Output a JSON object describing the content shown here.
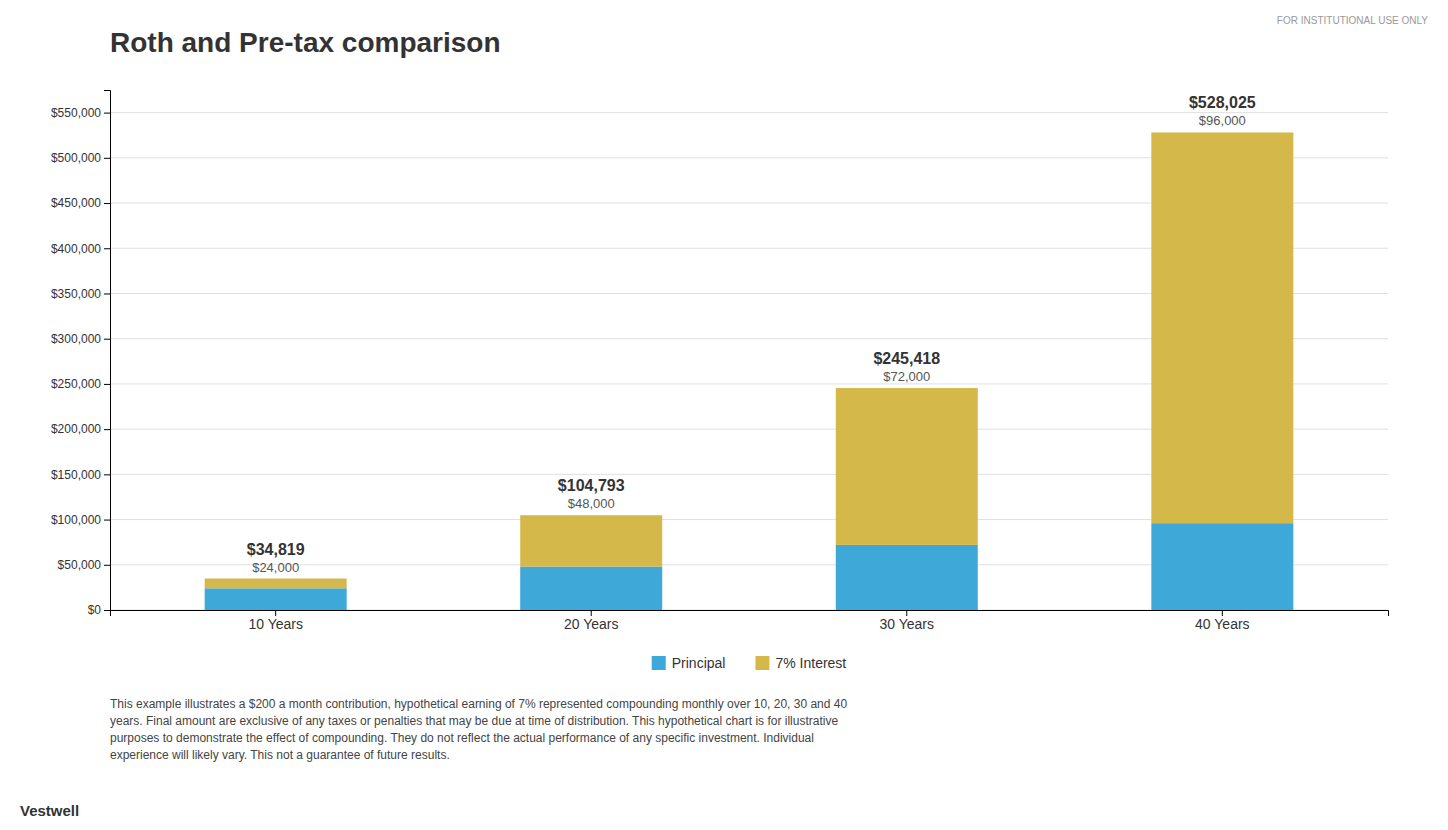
{
  "chart_data": {
    "type": "bar",
    "stacked": true,
    "title": "Roth and Pre-tax comparison",
    "categories": [
      "10 Years",
      "20 Years",
      "30 Years",
      "40 Years"
    ],
    "series": [
      {
        "name": "Principal",
        "color": "#3ea8d8",
        "values": [
          24000,
          48000,
          72000,
          96000
        ],
        "value_labels": [
          "$24,000",
          "$48,000",
          "$72,000",
          "$96,000"
        ]
      },
      {
        "name": "7% Interest",
        "color": "#d4b84a",
        "values": [
          10819,
          56793,
          173418,
          432025
        ]
      }
    ],
    "totals": [
      34819,
      104793,
      245418,
      528025
    ],
    "total_labels": [
      "$34,819",
      "$104,793",
      "$245,418",
      "$528,025"
    ],
    "data_labels": true,
    "ylim": [
      0,
      575000
    ],
    "yticks": [
      {
        "value": 0,
        "label": "$0"
      },
      {
        "value": 50000,
        "label": "$50,000"
      },
      {
        "value": 100000,
        "label": "$100,000"
      },
      {
        "value": 150000,
        "label": "$150,000"
      },
      {
        "value": 200000,
        "label": "$200,000"
      },
      {
        "value": 250000,
        "label": "$250,000"
      },
      {
        "value": 300000,
        "label": "$300,000"
      },
      {
        "value": 350000,
        "label": "$350,000"
      },
      {
        "value": 400000,
        "label": "$400,000"
      },
      {
        "value": 450000,
        "label": "$450,000"
      },
      {
        "value": 500000,
        "label": "$500,000"
      },
      {
        "value": 550000,
        "label": "$550,000"
      }
    ],
    "grid": true,
    "legend": "bottom",
    "annotations": [
      "FOR INSTITUTIONAL USE ONLY",
      "This example illustrates a $200 a month contribution, hypothetical earning of 7% represented compounding monthly over 10, 20, 30 and 40",
      "years. Final amount are exclusive of any taxes or penalties that may be due at time of distribution. This hypothetical chart is for illustrative",
      "purposes to demonstrate the effect of compounding. They do not reflect the actual performance of any specific investment. Individual",
      "experience will likely vary. This not a guarantee of future results.",
      "Vestwell"
    ]
  }
}
